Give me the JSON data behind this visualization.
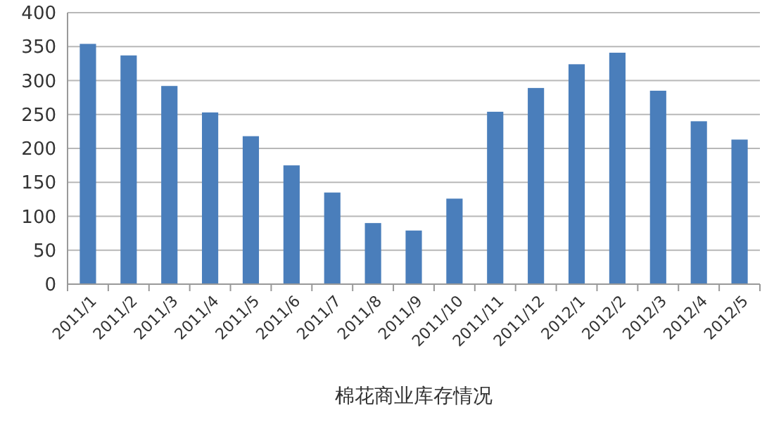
{
  "chart_data": {
    "type": "bar",
    "xlabel": "棉花商业库存情况",
    "categories": [
      "2011/1",
      "2011/2",
      "2011/3",
      "2011/4",
      "2011/5",
      "2011/6",
      "2011/7",
      "2011/8",
      "2011/9",
      "2011/10",
      "2011/11",
      "2011/12",
      "2012/1",
      "2012/2",
      "2012/3",
      "2012/4",
      "2012/5"
    ],
    "values": [
      354,
      337,
      292,
      253,
      218,
      175,
      135,
      90,
      79,
      126,
      254,
      289,
      324,
      341,
      285,
      240,
      213
    ],
    "color": "#4a7ebb",
    "ylim": [
      0,
      400
    ],
    "yticks": [
      0,
      50,
      100,
      150,
      200,
      250,
      300,
      350,
      400
    ],
    "grid": "y"
  }
}
